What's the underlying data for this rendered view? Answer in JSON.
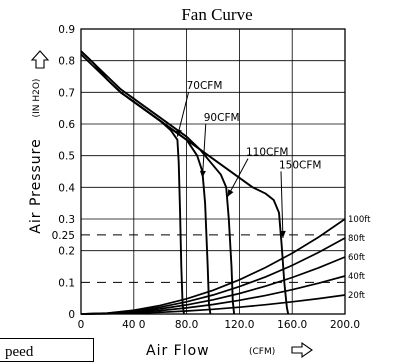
{
  "chart_data": {
    "type": "line",
    "title": "Fan Curve",
    "xlabel": "Air Flow",
    "xlabel_unit": "(CFM)",
    "ylabel": "Air Pressure",
    "ylabel_unit": "(IN H2O)",
    "xlim": [
      0,
      200
    ],
    "ylim": [
      0,
      0.9
    ],
    "grid": true,
    "x_tick_labels": [
      "0",
      "40 0",
      "80.0",
      "120.0",
      "160.0",
      "200.0"
    ],
    "x_ticks": [
      0,
      40,
      80,
      120,
      160,
      200
    ],
    "y_tick_labels": [
      "0",
      "0.1",
      "0.2",
      "0.25",
      "0.3",
      "0.4",
      "0.5",
      "0.6",
      "0.7",
      "0.8",
      "0.9"
    ],
    "y_ticks": [
      0,
      0.1,
      0.2,
      0.25,
      0.3,
      0.4,
      0.5,
      0.6,
      0.7,
      0.8,
      0.9
    ],
    "reference_lines": [
      0.25,
      0.1
    ],
    "series": [
      {
        "name": "70CFM",
        "points": [
          [
            0,
            0.83
          ],
          [
            10,
            0.79
          ],
          [
            20,
            0.74
          ],
          [
            30,
            0.7
          ],
          [
            40,
            0.67
          ],
          [
            50,
            0.64
          ],
          [
            60,
            0.61
          ],
          [
            68,
            0.58
          ],
          [
            73,
            0.55
          ],
          [
            74,
            0.48
          ],
          [
            75,
            0.33
          ],
          [
            76,
            0.15
          ],
          [
            77,
            0.03
          ],
          [
            78,
            0.0
          ]
        ]
      },
      {
        "name": "90CFM",
        "points": [
          [
            0,
            0.83
          ],
          [
            10,
            0.79
          ],
          [
            20,
            0.74
          ],
          [
            30,
            0.7
          ],
          [
            40,
            0.67
          ],
          [
            50,
            0.64
          ],
          [
            60,
            0.61
          ],
          [
            70,
            0.58
          ],
          [
            80,
            0.55
          ],
          [
            88,
            0.5
          ],
          [
            92,
            0.45
          ],
          [
            94,
            0.35
          ],
          [
            96,
            0.15
          ],
          [
            97,
            0.03
          ],
          [
            98,
            0.0
          ]
        ]
      },
      {
        "name": "110CFM",
        "points": [
          [
            0,
            0.83
          ],
          [
            10,
            0.79
          ],
          [
            20,
            0.75
          ],
          [
            30,
            0.71
          ],
          [
            40,
            0.68
          ],
          [
            50,
            0.65
          ],
          [
            60,
            0.62
          ],
          [
            70,
            0.59
          ],
          [
            80,
            0.56
          ],
          [
            90,
            0.52
          ],
          [
            100,
            0.47
          ],
          [
            106,
            0.44
          ],
          [
            110,
            0.4
          ],
          [
            112,
            0.3
          ],
          [
            114,
            0.15
          ],
          [
            115,
            0.04
          ],
          [
            116,
            0.0
          ]
        ]
      },
      {
        "name": "150CFM",
        "points": [
          [
            0,
            0.82
          ],
          [
            10,
            0.78
          ],
          [
            20,
            0.74
          ],
          [
            30,
            0.7
          ],
          [
            40,
            0.67
          ],
          [
            50,
            0.64
          ],
          [
            60,
            0.61
          ],
          [
            70,
            0.58
          ],
          [
            80,
            0.55
          ],
          [
            90,
            0.52
          ],
          [
            100,
            0.49
          ],
          [
            110,
            0.46
          ],
          [
            120,
            0.43
          ],
          [
            130,
            0.4
          ],
          [
            140,
            0.38
          ],
          [
            146,
            0.36
          ],
          [
            150,
            0.32
          ],
          [
            152,
            0.22
          ],
          [
            154,
            0.1
          ],
          [
            156,
            0.02
          ],
          [
            157,
            0.0
          ]
        ]
      }
    ],
    "system_curves": [
      {
        "name": "100ft",
        "points": [
          [
            0,
            0.0
          ],
          [
            20,
            0.003
          ],
          [
            40,
            0.012
          ],
          [
            60,
            0.027
          ],
          [
            80,
            0.048
          ],
          [
            100,
            0.075
          ],
          [
            120,
            0.108
          ],
          [
            140,
            0.147
          ],
          [
            160,
            0.192
          ],
          [
            180,
            0.243
          ],
          [
            200,
            0.3
          ]
        ]
      },
      {
        "name": "80ft",
        "points": [
          [
            0,
            0.0
          ],
          [
            20,
            0.0024
          ],
          [
            40,
            0.0096
          ],
          [
            60,
            0.0216
          ],
          [
            80,
            0.0384
          ],
          [
            100,
            0.06
          ],
          [
            120,
            0.0864
          ],
          [
            140,
            0.1176
          ],
          [
            160,
            0.1536
          ],
          [
            180,
            0.1944
          ],
          [
            200,
            0.24
          ]
        ]
      },
      {
        "name": "60ft",
        "points": [
          [
            0,
            0.0
          ],
          [
            20,
            0.0018
          ],
          [
            40,
            0.0072
          ],
          [
            60,
            0.0162
          ],
          [
            80,
            0.0288
          ],
          [
            100,
            0.045
          ],
          [
            120,
            0.0648
          ],
          [
            140,
            0.0882
          ],
          [
            160,
            0.1152
          ],
          [
            180,
            0.1458
          ],
          [
            200,
            0.18
          ]
        ]
      },
      {
        "name": "40ft",
        "points": [
          [
            0,
            0.0
          ],
          [
            20,
            0.0012
          ],
          [
            40,
            0.0048
          ],
          [
            60,
            0.0108
          ],
          [
            80,
            0.0192
          ],
          [
            100,
            0.03
          ],
          [
            120,
            0.0432
          ],
          [
            140,
            0.0588
          ],
          [
            160,
            0.0768
          ],
          [
            180,
            0.0972
          ],
          [
            200,
            0.12
          ]
        ]
      },
      {
        "name": "20ft",
        "points": [
          [
            0,
            0.0
          ],
          [
            20,
            0.0006
          ],
          [
            40,
            0.0024
          ],
          [
            60,
            0.0054
          ],
          [
            80,
            0.0096
          ],
          [
            100,
            0.015
          ],
          [
            120,
            0.0216
          ],
          [
            140,
            0.0294
          ],
          [
            160,
            0.0384
          ],
          [
            180,
            0.0486
          ],
          [
            200,
            0.06
          ]
        ]
      }
    ],
    "callouts": [
      {
        "label": "70CFM",
        "x": 80,
        "y": 0.71,
        "target": [
          73,
          0.56
        ]
      },
      {
        "label": "90CFM",
        "x": 93,
        "y": 0.61,
        "target": [
          92,
          0.43
        ]
      },
      {
        "label": "110CFM",
        "x": 125,
        "y": 0.5,
        "target": [
          111,
          0.37
        ]
      },
      {
        "label": "150CFM",
        "x": 150,
        "y": 0.46,
        "target": [
          153,
          0.24
        ]
      }
    ]
  },
  "legend_box": {
    "text": "peed"
  }
}
